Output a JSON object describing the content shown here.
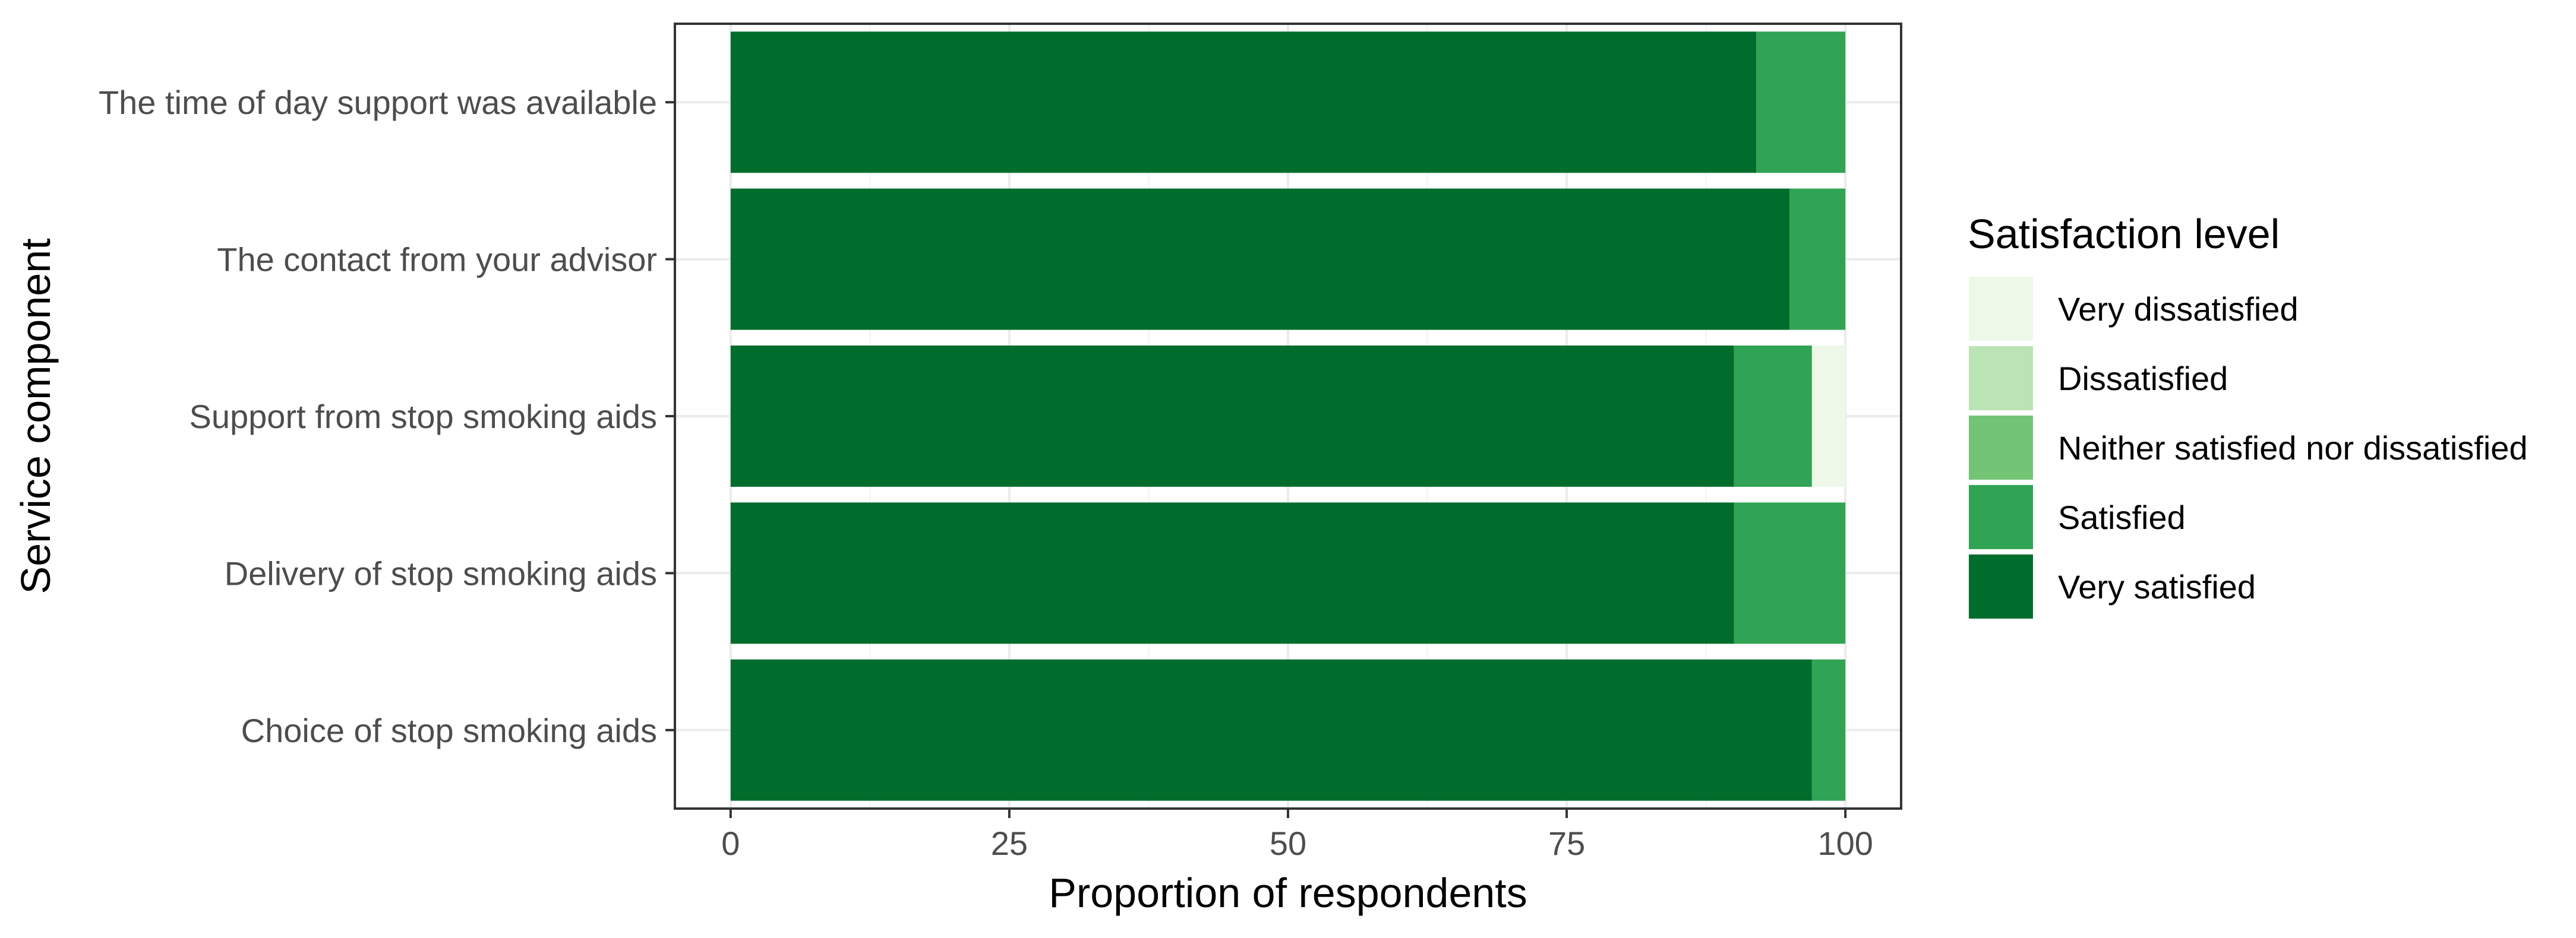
{
  "chart_data": {
    "type": "bar",
    "orientation": "horizontal",
    "stacked": true,
    "title": "",
    "xlabel": "Proportion of respondents",
    "ylabel": "Service component",
    "xlim": [
      -5,
      105
    ],
    "x_ticks": [
      0,
      25,
      50,
      75,
      100
    ],
    "grid": true,
    "legend_position": "right",
    "categories": [
      "The time of day support was available",
      "The contact from your advisor",
      "Support from stop smoking aids",
      "Delivery of stop smoking aids",
      "Choice of stop smoking aids"
    ],
    "legend": {
      "title": "Satisfaction level",
      "entries": [
        "Very dissatisfied",
        "Dissatisfied",
        "Neither satisfied nor dissatisfied",
        "Satisfied",
        "Very satisfied"
      ]
    },
    "series": [
      {
        "name": "Very satisfied",
        "color": "#006d2c",
        "values": [
          92,
          95,
          90,
          90,
          97
        ]
      },
      {
        "name": "Satisfied",
        "color": "#31a354",
        "values": [
          8,
          5,
          7,
          10,
          3
        ]
      },
      {
        "name": "Neither satisfied nor dissatisfied",
        "color": "#74c476",
        "values": [
          0,
          0,
          0,
          0,
          0
        ]
      },
      {
        "name": "Dissatisfied",
        "color": "#bae4b3",
        "values": [
          0,
          0,
          0,
          0,
          0
        ]
      },
      {
        "name": "Very dissatisfied",
        "color": "#edf8e9",
        "values": [
          0,
          0,
          3,
          0,
          0
        ]
      }
    ],
    "legend_colors": [
      "#edf8e9",
      "#bae4b3",
      "#74c476",
      "#31a354",
      "#006d2c"
    ]
  }
}
